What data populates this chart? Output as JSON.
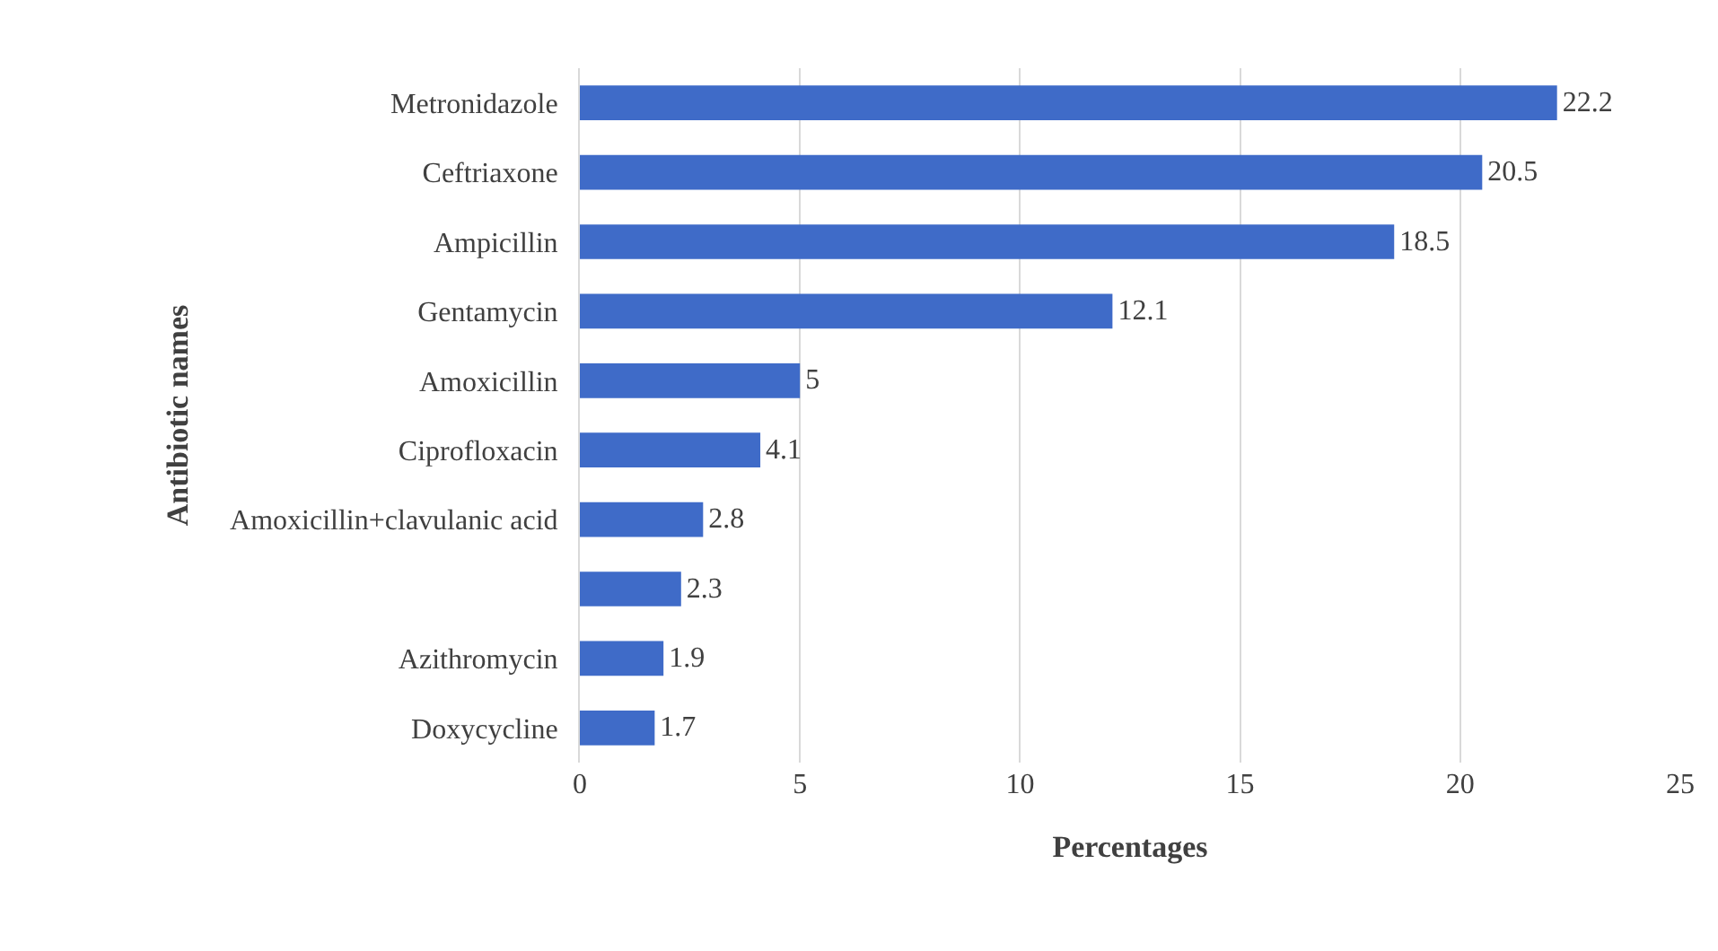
{
  "chart_data": {
    "type": "bar",
    "orientation": "horizontal",
    "xlabel": "Percentages",
    "ylabel": "Antibiotic names",
    "categories": [
      "Metronidazole",
      "Ceftriaxone",
      "Ampicillin",
      "Gentamycin",
      "Amoxicillin",
      "Ciprofloxacin",
      "Amoxicillin+clavulanic acid",
      null,
      "Azithromycin",
      "Doxycycline"
    ],
    "values": [
      22.2,
      20.5,
      18.5,
      12.1,
      5,
      4.1,
      2.8,
      2.3,
      1.9,
      1.7
    ],
    "color": "#3f6bc8",
    "xlim": [
      0,
      25
    ],
    "xticks": [
      0,
      5,
      10,
      15,
      20,
      25
    ],
    "grid": "x",
    "data_labels": true
  }
}
